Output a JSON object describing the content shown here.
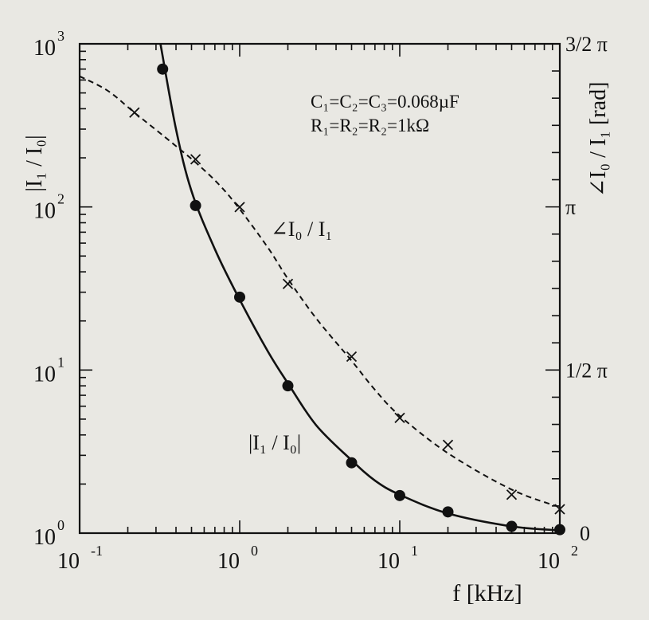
{
  "chart_data": {
    "type": "scatter",
    "xlabel": "f [kHz]",
    "ylabel_left": "|I₁ / I₀|",
    "ylabel_right": "∠I₀ / I₁ [rad]",
    "x_scale": "log",
    "xlim": [
      0.1,
      100
    ],
    "y_left_scale": "log",
    "y_left_lim": [
      1,
      1000
    ],
    "y_right_lim_rad": [
      0,
      4.712
    ],
    "x_ticks": [
      {
        "value": 0.1,
        "base": "10",
        "exp": "-1"
      },
      {
        "value": 1,
        "base": "10",
        "exp": "0"
      },
      {
        "value": 10,
        "base": "10",
        "exp": "1"
      },
      {
        "value": 100,
        "base": "10",
        "exp": "2"
      }
    ],
    "y_left_ticks": [
      {
        "value": 1,
        "base": "10",
        "exp": "0"
      },
      {
        "value": 10,
        "base": "10",
        "exp": "1"
      },
      {
        "value": 100,
        "base": "10",
        "exp": "2"
      },
      {
        "value": 1000,
        "base": "10",
        "exp": "3"
      }
    ],
    "y_right_ticks": [
      {
        "value": 0,
        "label": "0"
      },
      {
        "value": 1.5708,
        "label": "1/2 π"
      },
      {
        "value": 3.1416,
        "label": "π"
      },
      {
        "value": 4.7124,
        "label": "3/2 π"
      }
    ],
    "annotations": {
      "params_line1": "C₁=C₂=C₃=0.068µF",
      "params_line2": "R₁=R₂=R₂=1kΩ",
      "label_phase": "∠I₀ / I₁",
      "label_mag": "|I₁ / I₀|"
    },
    "series": [
      {
        "name": "|I₁ / I₀|",
        "axis": "left",
        "marker": "filled-circle",
        "line": "solid",
        "points": [
          {
            "x": 0.33,
            "y": 700
          },
          {
            "x": 0.53,
            "y": 102
          },
          {
            "x": 1.0,
            "y": 28
          },
          {
            "x": 2.0,
            "y": 8
          },
          {
            "x": 5.0,
            "y": 2.7
          },
          {
            "x": 10,
            "y": 1.7
          },
          {
            "x": 20,
            "y": 1.35
          },
          {
            "x": 50,
            "y": 1.1
          },
          {
            "x": 100,
            "y": 1.05
          }
        ],
        "curve": [
          {
            "x": 0.32,
            "y": 1000
          },
          {
            "x": 0.4,
            "y": 300
          },
          {
            "x": 0.5,
            "y": 125
          },
          {
            "x": 0.7,
            "y": 55
          },
          {
            "x": 1.0,
            "y": 27
          },
          {
            "x": 1.5,
            "y": 13
          },
          {
            "x": 2.0,
            "y": 8.3
          },
          {
            "x": 3.0,
            "y": 4.6
          },
          {
            "x": 5.0,
            "y": 2.8
          },
          {
            "x": 7.0,
            "y": 2.1
          },
          {
            "x": 10,
            "y": 1.72
          },
          {
            "x": 20,
            "y": 1.32
          },
          {
            "x": 50,
            "y": 1.1
          },
          {
            "x": 100,
            "y": 1.04
          }
        ]
      },
      {
        "name": "∠I₀ / I₁",
        "axis": "right",
        "marker": "x",
        "line": "dashed",
        "points": [
          {
            "x": 0.22,
            "y": 4.05
          },
          {
            "x": 0.53,
            "y": 3.6
          },
          {
            "x": 1.0,
            "y": 3.14
          },
          {
            "x": 2.0,
            "y": 2.4
          },
          {
            "x": 5.0,
            "y": 1.7
          },
          {
            "x": 10,
            "y": 1.11
          },
          {
            "x": 20,
            "y": 0.85
          },
          {
            "x": 50,
            "y": 0.37
          },
          {
            "x": 100,
            "y": 0.23
          }
        ],
        "curve": [
          {
            "x": 0.1,
            "y": 4.4
          },
          {
            "x": 0.15,
            "y": 4.26
          },
          {
            "x": 0.22,
            "y": 4.05
          },
          {
            "x": 0.35,
            "y": 3.8
          },
          {
            "x": 0.53,
            "y": 3.57
          },
          {
            "x": 0.75,
            "y": 3.35
          },
          {
            "x": 1.0,
            "y": 3.12
          },
          {
            "x": 1.5,
            "y": 2.75
          },
          {
            "x": 2.0,
            "y": 2.45
          },
          {
            "x": 3.0,
            "y": 2.07
          },
          {
            "x": 5.0,
            "y": 1.66
          },
          {
            "x": 7.0,
            "y": 1.38
          },
          {
            "x": 10,
            "y": 1.13
          },
          {
            "x": 20,
            "y": 0.77
          },
          {
            "x": 50,
            "y": 0.42
          },
          {
            "x": 100,
            "y": 0.25
          }
        ]
      }
    ]
  }
}
